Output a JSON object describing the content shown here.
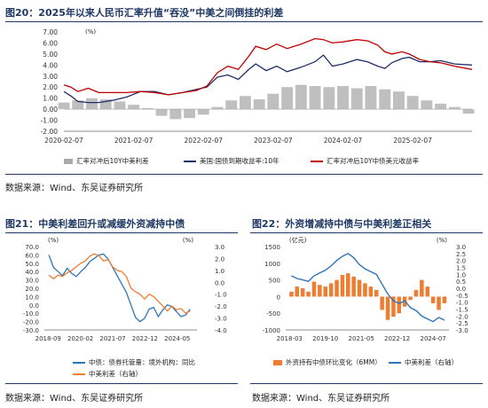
{
  "fig20": {
    "title": "图20：2025年以来人民币汇率升值“吞没”中美之间倒挂的利差",
    "source": "数据来源：Wind、东吴证券研究所",
    "chart_data": {
      "type": "line",
      "y_unit": "(%)",
      "ylim": [
        -2,
        7
      ],
      "y_ticks": [
        "7.00",
        "6.00",
        "5.00",
        "4.00",
        "3.00",
        "2.00",
        "1.00",
        "0.00",
        "-1.00",
        "-2.00"
      ],
      "x_ticks": [
        "2020-02-07",
        "2021-02-07",
        "2022-02-07",
        "2023-02-07",
        "2024-02-07",
        "2025-02-07"
      ],
      "x_range": [
        2020.1,
        2025.95
      ],
      "series": [
        {
          "name": "汇率对冲后10Y中美利差",
          "type": "bar",
          "color": "#aaaaaa",
          "x": [
            2020.1,
            2020.3,
            2020.5,
            2020.7,
            2020.9,
            2021.1,
            2021.3,
            2021.5,
            2021.7,
            2021.9,
            2022.1,
            2022.3,
            2022.5,
            2022.7,
            2022.9,
            2023.1,
            2023.3,
            2023.5,
            2023.7,
            2023.9,
            2024.1,
            2024.3,
            2024.5,
            2024.7,
            2024.9,
            2025.1,
            2025.3,
            2025.5,
            2025.7,
            2025.9
          ],
          "values": [
            0.6,
            0.8,
            1.0,
            0.9,
            0.7,
            0.4,
            0.1,
            -0.6,
            -0.9,
            -0.8,
            -0.5,
            0.2,
            0.8,
            1.2,
            0.9,
            1.4,
            2.0,
            2.2,
            2.1,
            2.0,
            2.1,
            1.9,
            2.1,
            1.8,
            1.6,
            1.2,
            0.8,
            0.5,
            0.2,
            -0.4
          ]
        },
        {
          "name": "美国:国债到期收益率:10年",
          "type": "line",
          "color": "#1f2f6b",
          "x": [
            2020.1,
            2020.2,
            2020.3,
            2020.45,
            2020.6,
            2020.8,
            2021.0,
            2021.2,
            2021.4,
            2021.6,
            2021.8,
            2022.0,
            2022.15,
            2022.3,
            2022.45,
            2022.6,
            2022.75,
            2022.85,
            2023.0,
            2023.15,
            2023.3,
            2023.5,
            2023.7,
            2023.82,
            2023.95,
            2024.1,
            2024.3,
            2024.45,
            2024.6,
            2024.7,
            2024.8,
            2024.95,
            2025.05,
            2025.2,
            2025.35,
            2025.5,
            2025.7,
            2025.95
          ],
          "values": [
            1.6,
            1.2,
            0.7,
            0.6,
            0.6,
            0.8,
            1.1,
            1.6,
            1.6,
            1.3,
            1.5,
            1.8,
            2.0,
            2.9,
            3.1,
            2.7,
            3.6,
            4.1,
            3.5,
            3.9,
            3.4,
            3.8,
            4.3,
            4.9,
            3.9,
            4.1,
            4.5,
            4.3,
            3.9,
            3.7,
            4.2,
            4.6,
            4.7,
            4.3,
            4.3,
            4.4,
            4.1,
            4.0
          ]
        },
        {
          "name": "汇率对冲后10Y中债美元收益率",
          "type": "line",
          "color": "#c00000",
          "x": [
            2020.1,
            2020.2,
            2020.3,
            2020.45,
            2020.6,
            2020.8,
            2021.0,
            2021.2,
            2021.4,
            2021.6,
            2021.8,
            2022.0,
            2022.15,
            2022.3,
            2022.45,
            2022.6,
            2022.75,
            2022.85,
            2023.0,
            2023.15,
            2023.3,
            2023.5,
            2023.7,
            2023.82,
            2023.95,
            2024.1,
            2024.3,
            2024.45,
            2024.6,
            2024.7,
            2024.8,
            2024.95,
            2025.05,
            2025.2,
            2025.35,
            2025.5,
            2025.7,
            2025.95
          ],
          "values": [
            2.2,
            2.0,
            1.6,
            1.9,
            1.5,
            1.5,
            1.5,
            1.6,
            1.5,
            1.3,
            1.5,
            1.7,
            2.1,
            3.3,
            3.9,
            3.6,
            4.8,
            5.7,
            5.4,
            5.9,
            5.5,
            5.9,
            6.4,
            6.3,
            6.0,
            6.1,
            6.3,
            6.2,
            5.8,
            5.2,
            5.0,
            5.2,
            5.0,
            4.5,
            4.3,
            4.2,
            3.9,
            3.6
          ]
        }
      ]
    }
  },
  "fig21": {
    "title": "图21：中美利差回升或减缓外资减持中债",
    "source": "数据来源：Wind、东吴证券研究所",
    "chart_data": {
      "type": "line",
      "left_unit": "(%)",
      "right_unit": "(%)",
      "left_ylim": [
        -30,
        70
      ],
      "right_ylim": [
        -4,
        3
      ],
      "left_ticks": [
        "70.0",
        "60.0",
        "50.0",
        "40.0",
        "30.0",
        "20.0",
        "10.0",
        "0.0",
        "-10.0",
        "-20.0",
        "-30.0"
      ],
      "right_ticks": [
        "3.0",
        "2.0",
        "1.0",
        "0.0",
        "-1.0",
        "-2.0",
        "-3.0",
        "-4.0"
      ],
      "x_ticks": [
        "2018-09",
        "2020-02",
        "2021-07",
        "2022-12",
        "2024-05"
      ],
      "x_range": [
        2018.5,
        2025.2
      ],
      "series": [
        {
          "name": "中债：债券托管量：境外机构：同比",
          "axis": "left",
          "color": "#2e75b6",
          "x": [
            2018.7,
            2018.9,
            2019.1,
            2019.3,
            2019.5,
            2019.7,
            2019.9,
            2020.1,
            2020.3,
            2020.5,
            2020.7,
            2020.9,
            2021.1,
            2021.3,
            2021.5,
            2021.7,
            2021.9,
            2022.1,
            2022.3,
            2022.5,
            2022.7,
            2022.9,
            2023.1,
            2023.3,
            2023.5,
            2023.7,
            2023.9,
            2024.1,
            2024.3,
            2024.5,
            2024.7,
            2024.9
          ],
          "values": [
            60,
            45,
            40,
            35,
            44,
            38,
            34,
            40,
            45,
            52,
            56,
            60,
            61,
            55,
            45,
            35,
            25,
            15,
            0,
            -15,
            -20,
            -16,
            -5,
            -3,
            -14,
            -6,
            0,
            -2,
            -8,
            -14,
            -12,
            -5
          ]
        },
        {
          "name": "中美利差（右轴）",
          "axis": "right",
          "color": "#ed7d31",
          "x": [
            2018.7,
            2018.9,
            2019.1,
            2019.3,
            2019.5,
            2019.7,
            2019.9,
            2020.1,
            2020.3,
            2020.5,
            2020.7,
            2020.9,
            2021.1,
            2021.3,
            2021.5,
            2021.7,
            2021.9,
            2022.1,
            2022.3,
            2022.5,
            2022.7,
            2022.9,
            2023.1,
            2023.3,
            2023.5,
            2023.7,
            2023.9,
            2024.1,
            2024.3,
            2024.5,
            2024.7,
            2024.9
          ],
          "values": [
            0.6,
            0.3,
            0.6,
            0.5,
            0.8,
            1.0,
            1.3,
            1.6,
            1.8,
            2.2,
            2.4,
            2.2,
            1.8,
            1.9,
            1.3,
            1.0,
            0.9,
            0.5,
            -0.5,
            -0.8,
            -1.0,
            -1.4,
            -1.0,
            -1.2,
            -1.6,
            -2.0,
            -2.4,
            -2.0,
            -2.3,
            -2.2,
            -2.6,
            -2.4
          ]
        }
      ]
    }
  },
  "fig22": {
    "title": "图22：外资增减持中债与中美利差正相关",
    "source": "数据来源：Wind、东吴证券研究所",
    "chart_data": {
      "type": "bar",
      "left_unit": "(亿元)",
      "right_unit": "(%)",
      "left_ylim": [
        -1000,
        1500
      ],
      "right_ylim": [
        -3,
        3
      ],
      "left_ticks": [
        "1500",
        "1000",
        "500",
        "0",
        "-500",
        "-1000"
      ],
      "right_ticks": [
        "3.0",
        "2.5",
        "2.0",
        "1.5",
        "1.0",
        "0.5",
        "0.0",
        "-0.5",
        "-1.0",
        "-1.5",
        "-2.0",
        "-2.5",
        "-3.0"
      ],
      "x_ticks": [
        "2018-03",
        "2019-10",
        "2021-05",
        "2022-12",
        "2024-07"
      ],
      "x_range": [
        2018.0,
        2025.2
      ],
      "series": [
        {
          "name": "外资持有中债环比变化（6MM）",
          "type": "bar",
          "axis": "left",
          "color": "#ed7d31",
          "x": [
            2018.25,
            2018.5,
            2018.75,
            2019.0,
            2019.25,
            2019.5,
            2019.75,
            2020.0,
            2020.25,
            2020.5,
            2020.75,
            2021.0,
            2021.25,
            2021.5,
            2021.75,
            2022.0,
            2022.25,
            2022.5,
            2022.75,
            2023.0,
            2023.25,
            2023.5,
            2023.75,
            2024.0,
            2024.25,
            2024.5,
            2024.75,
            2025.0
          ],
          "values": [
            150,
            300,
            250,
            150,
            450,
            350,
            300,
            400,
            500,
            650,
            700,
            600,
            500,
            400,
            300,
            200,
            -400,
            -700,
            -600,
            -500,
            -300,
            -100,
            200,
            500,
            300,
            -200,
            -400,
            -200
          ]
        },
        {
          "name": "中美利差（右轴）",
          "type": "line",
          "axis": "right",
          "color": "#2e75b6",
          "x": [
            2018.25,
            2018.5,
            2018.75,
            2019.0,
            2019.25,
            2019.5,
            2019.75,
            2020.0,
            2020.25,
            2020.5,
            2020.75,
            2021.0,
            2021.25,
            2021.5,
            2021.75,
            2022.0,
            2022.25,
            2022.5,
            2022.75,
            2023.0,
            2023.25,
            2023.5,
            2023.75,
            2024.0,
            2024.25,
            2024.5,
            2024.75,
            2025.0
          ],
          "values": [
            0.9,
            0.7,
            0.6,
            0.5,
            0.9,
            1.1,
            1.3,
            1.6,
            2.0,
            2.3,
            2.5,
            2.2,
            1.7,
            1.4,
            1.2,
            1.0,
            0.3,
            -0.4,
            -0.9,
            -1.1,
            -0.9,
            -1.4,
            -1.6,
            -2.0,
            -2.2,
            -2.4,
            -2.1,
            -2.3
          ]
        }
      ]
    }
  }
}
